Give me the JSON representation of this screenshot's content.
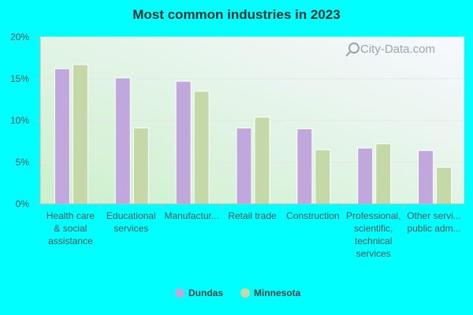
{
  "chart_data": {
    "type": "bar",
    "title": "Most common industries in 2023",
    "categories": [
      [
        "Health care",
        "& social",
        "assistance"
      ],
      [
        "Educational",
        "services"
      ],
      [
        "Manufactur..."
      ],
      [
        "Retail trade"
      ],
      [
        "Construction"
      ],
      [
        "Professional,",
        "scientific,",
        "technical",
        "services"
      ],
      [
        "Other servi...",
        "public adm..."
      ]
    ],
    "series": [
      {
        "name": "Dundas",
        "color": "#c0a8dc",
        "values": [
          16.2,
          15.1,
          14.7,
          9.1,
          9.0,
          6.7,
          6.4
        ]
      },
      {
        "name": "Minnesota",
        "color": "#c4d8a8",
        "values": [
          16.7,
          9.1,
          13.5,
          10.4,
          6.5,
          7.2,
          4.4
        ]
      }
    ],
    "yticks": [
      "0%",
      "5%",
      "10%",
      "15%",
      "20%"
    ],
    "ylim": [
      0,
      20
    ],
    "xlabel": "",
    "ylabel": "",
    "grid": true,
    "legend_position": "bottom-center"
  },
  "watermark": "City-Data.com",
  "colors": {
    "page_background": "#00ffff",
    "plot_gradient_top": "#f8f8ff",
    "plot_gradient_bottom": "#ccf0cc",
    "axis": "#bbbbbb",
    "grid": "#e6e6e6"
  }
}
